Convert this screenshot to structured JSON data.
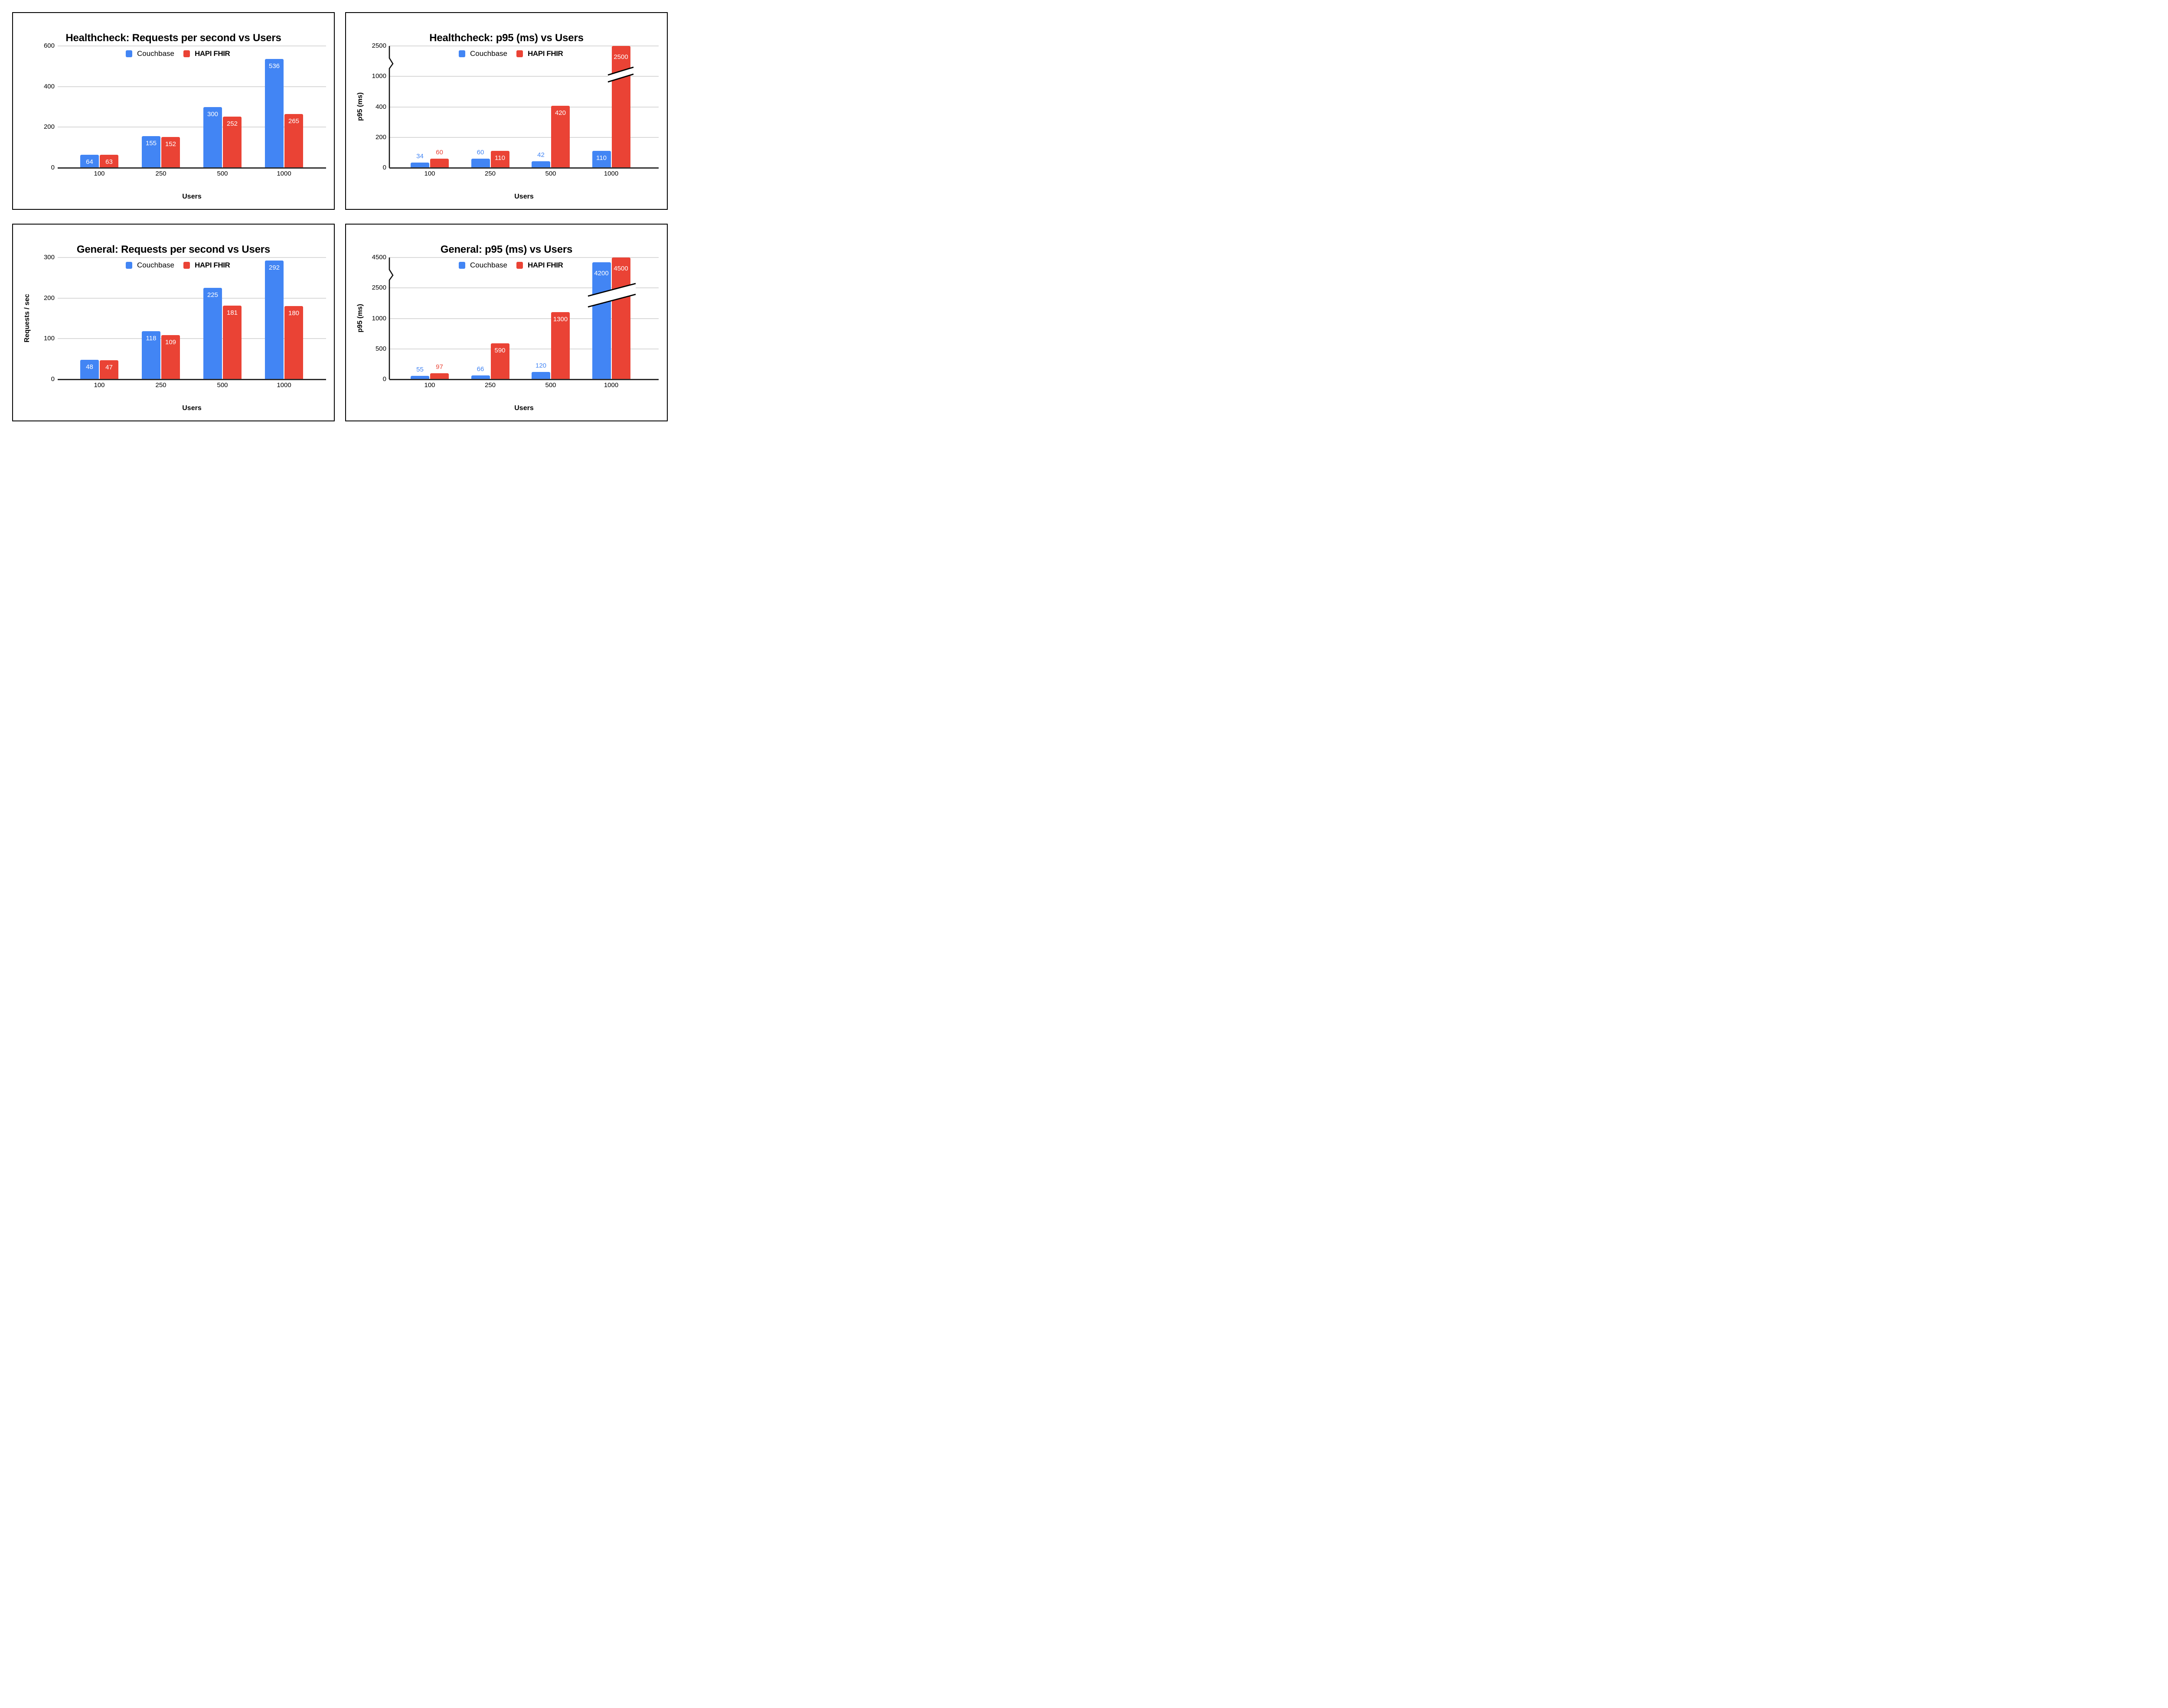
{
  "chart_data": [
    {
      "type": "bar",
      "title": "Healthcheck: Requests per second vs Users",
      "xlabel": "Users",
      "ylabel": null,
      "categories": [
        "100",
        "250",
        "500",
        "1000"
      ],
      "series": [
        {
          "name": "Couchbase",
          "color": "#4285F4",
          "values": [
            64,
            155,
            300,
            536
          ]
        },
        {
          "name": "HAPI FHIR",
          "color": "#EA4335",
          "values": [
            63,
            152,
            252,
            265
          ]
        }
      ],
      "yticks": [
        0,
        200,
        400,
        600
      ],
      "ylim": [
        0,
        600
      ],
      "grid": true,
      "legend_position": "top",
      "broken_axis": false,
      "broken_bars": []
    },
    {
      "type": "bar",
      "title": "Healthcheck: p95 (ms) vs Users",
      "xlabel": "Users",
      "ylabel": "p95 (ms)",
      "categories": [
        "100",
        "250",
        "500",
        "1000"
      ],
      "series": [
        {
          "name": "Couchbase",
          "color": "#4285F4",
          "values": [
            34,
            60,
            42,
            110
          ]
        },
        {
          "name": "HAPI FHIR",
          "color": "#EA4335",
          "values": [
            60,
            110,
            420,
            2500
          ]
        }
      ],
      "yticks": [
        0,
        200,
        400,
        1000,
        2500
      ],
      "ylim": [
        0,
        2500
      ],
      "grid": true,
      "legend_position": "top",
      "broken_axis": true,
      "broken_bars": [
        {
          "category": "1000",
          "series": [
            "HAPI FHIR"
          ]
        }
      ]
    },
    {
      "type": "bar",
      "title": "General: Requests per second vs Users",
      "xlabel": "Users",
      "ylabel": "Requests / sec",
      "categories": [
        "100",
        "250",
        "500",
        "1000"
      ],
      "series": [
        {
          "name": "Couchbase",
          "color": "#4285F4",
          "values": [
            48,
            118,
            225,
            292
          ]
        },
        {
          "name": "HAPI FHIR",
          "color": "#EA4335",
          "values": [
            47,
            109,
            181,
            180
          ]
        }
      ],
      "yticks": [
        0,
        100,
        200,
        300
      ],
      "ylim": [
        0,
        300
      ],
      "grid": true,
      "legend_position": "top",
      "broken_axis": false,
      "broken_bars": []
    },
    {
      "type": "bar",
      "title": "General: p95 (ms) vs Users",
      "xlabel": "Users",
      "ylabel": "p95 (ms)",
      "categories": [
        "100",
        "250",
        "500",
        "1000"
      ],
      "series": [
        {
          "name": "Couchbase",
          "color": "#4285F4",
          "values": [
            55,
            66,
            120,
            4200
          ]
        },
        {
          "name": "HAPI FHIR",
          "color": "#EA4335",
          "values": [
            97,
            590,
            1300,
            4500
          ]
        }
      ],
      "yticks": [
        0,
        500,
        1000,
        2500,
        4500
      ],
      "ylim": [
        0,
        4500
      ],
      "grid": true,
      "legend_position": "top",
      "broken_axis": true,
      "broken_bars": [
        {
          "category": "1000",
          "series": [
            "Couchbase",
            "HAPI FHIR"
          ]
        }
      ]
    }
  ]
}
